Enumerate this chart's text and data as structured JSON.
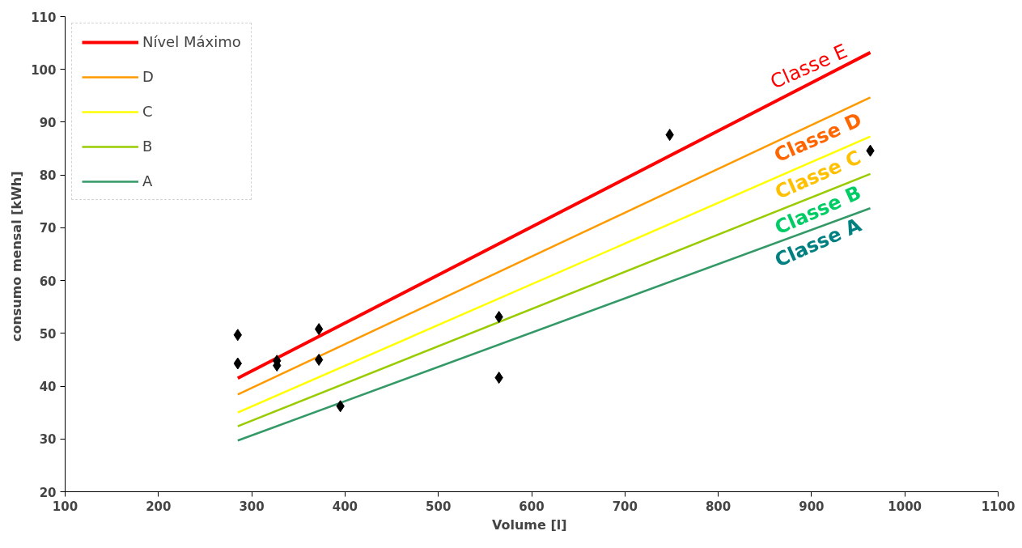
{
  "chart_data": {
    "type": "line",
    "xlabel": "Volume  [l]",
    "ylabel": "consumo mensal  [kWh]",
    "xlim": [
      100,
      1100
    ],
    "ylim": [
      20,
      110
    ],
    "xticks": [
      100,
      200,
      300,
      400,
      500,
      600,
      700,
      800,
      900,
      1000,
      1100
    ],
    "yticks": [
      20,
      30,
      40,
      50,
      60,
      70,
      80,
      90,
      100,
      110
    ],
    "grid": false,
    "legend": "top left",
    "line_style": "solid",
    "series": [
      {
        "name": "Nível Máximo",
        "color": "#ff0000",
        "x": [
          285,
          963
        ],
        "values": [
          41.5,
          103.2
        ]
      },
      {
        "name": "D",
        "color": "#ff9900",
        "x": [
          285,
          963
        ],
        "values": [
          38.4,
          94.7
        ]
      },
      {
        "name": "C",
        "color": "#ffff00",
        "x": [
          285,
          963
        ],
        "values": [
          35.0,
          87.3
        ]
      },
      {
        "name": "B",
        "color": "#99cc00",
        "x": [
          285,
          963
        ],
        "values": [
          32.4,
          80.2
        ]
      },
      {
        "name": "A",
        "color": "#339966",
        "x": [
          285,
          963
        ],
        "values": [
          29.7,
          73.7
        ]
      },
      {
        "color": "#000000",
        "type": "scatter",
        "marker": "diamond",
        "x": [
          285,
          285,
          327,
          327,
          372,
          372,
          395,
          565,
          565,
          748,
          963
        ],
        "values": [
          49.7,
          44.3,
          44.8,
          43.9,
          50.8,
          45.0,
          36.2,
          53.1,
          41.6,
          87.6,
          84.6
        ]
      }
    ],
    "annotations": [
      "Classe E",
      "Classe D",
      "Classe C",
      "Classe B",
      "Classe A"
    ]
  }
}
